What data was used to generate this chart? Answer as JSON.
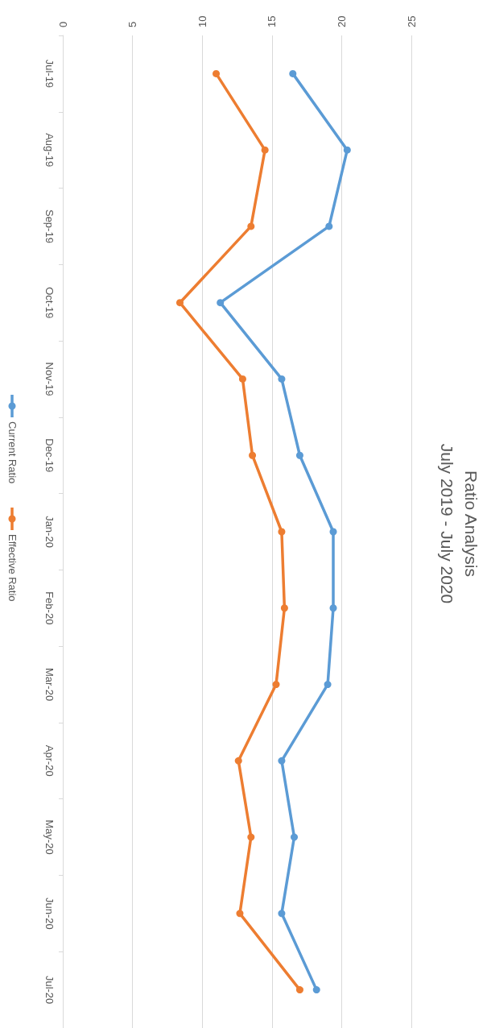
{
  "chart_data": {
    "type": "line",
    "title": "Ratio Analysis",
    "subtitle": "July 2019 - July 2020",
    "orientation": "horizontal",
    "categories": [
      "Jul-19",
      "Aug-19",
      "Sep-19",
      "Oct-19",
      "Nov-19",
      "Dec-19",
      "Jan-20",
      "Feb-20",
      "Mar-20",
      "Apr-20",
      "May-20",
      "Jun-20",
      "Jul-20"
    ],
    "series": [
      {
        "name": "Current Ratio",
        "color": "#5b9bd5",
        "values": [
          16.5,
          20.4,
          19.1,
          11.3,
          15.7,
          17.0,
          19.4,
          19.4,
          19.0,
          15.7,
          16.6,
          15.7,
          18.2
        ]
      },
      {
        "name": "Effective Ratio",
        "color": "#ed7d31",
        "values": [
          11.0,
          14.5,
          13.5,
          8.4,
          12.9,
          13.6,
          15.7,
          15.9,
          15.3,
          12.6,
          13.5,
          12.7,
          17.0
        ]
      }
    ],
    "xlim": [
      0,
      25
    ],
    "xticks": [
      0,
      5,
      10,
      15,
      20,
      25
    ],
    "grid": "x",
    "legend": "left",
    "marker": "circle",
    "line_style": "solid"
  }
}
